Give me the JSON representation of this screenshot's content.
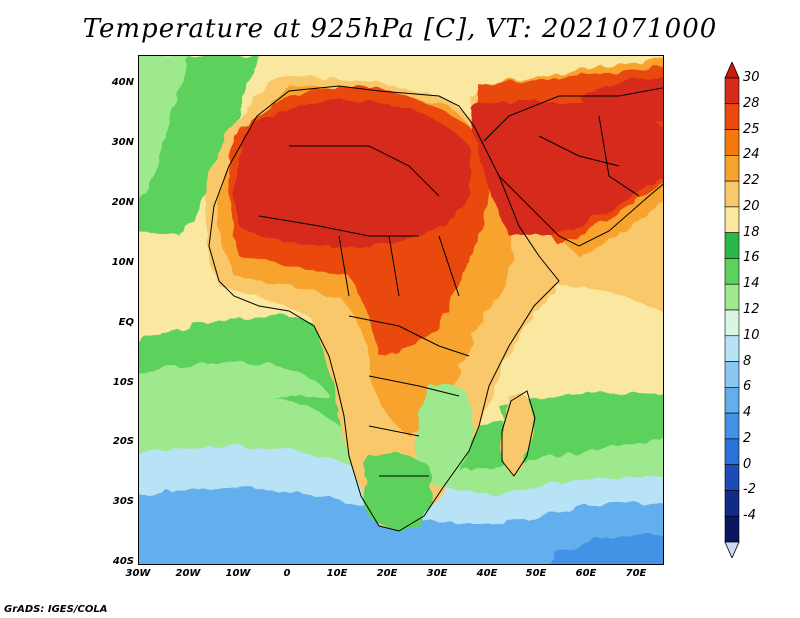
{
  "title": "Temperature at 925hPa [C], VT: 2021071000",
  "credit": "GrADS: IGES/COLA",
  "lat_ticks": [
    "40N",
    "30N",
    "20N",
    "10N",
    "EQ",
    "10S",
    "20S",
    "30S",
    "40S"
  ],
  "lon_ticks": [
    "30W",
    "20W",
    "10W",
    "0",
    "10E",
    "20E",
    "30E",
    "40E",
    "50E",
    "60E",
    "70E"
  ],
  "colorbar": {
    "labels": [
      "30",
      "28",
      "25",
      "24",
      "22",
      "20",
      "18",
      "16",
      "14",
      "12",
      "10",
      "8",
      "6",
      "4",
      "2",
      "0",
      "-2",
      "-4"
    ],
    "colors": [
      "#d62a1a",
      "#ea4a10",
      "#f57a0c",
      "#f7a32e",
      "#f9c86a",
      "#fbe8a0",
      "#2ab84a",
      "#5bd25c",
      "#9ee88e",
      "#d8f7e2",
      "#b8e3f6",
      "#89c7f0",
      "#63aeec",
      "#4292e6",
      "#2a72d8",
      "#1c4bb5",
      "#122a8a",
      "#0a1760"
    ],
    "top_arrow_color": "#cc1a10",
    "bottom_arrow_color": "#d0d8f8"
  },
  "map_colors": {
    "ocean_cool": "#63aeec",
    "ocean_mild": "#b8e3f6",
    "ocean_pale": "#d8f7e2",
    "green": "#5bd25c",
    "light_green": "#9ee88e",
    "yellow": "#fbe8a0",
    "tan": "#f9c86a",
    "orange": "#f7a32e",
    "dark_orange": "#f57a0c",
    "red_orange": "#ea4a10",
    "red": "#d62a1a",
    "border": "#000000"
  }
}
